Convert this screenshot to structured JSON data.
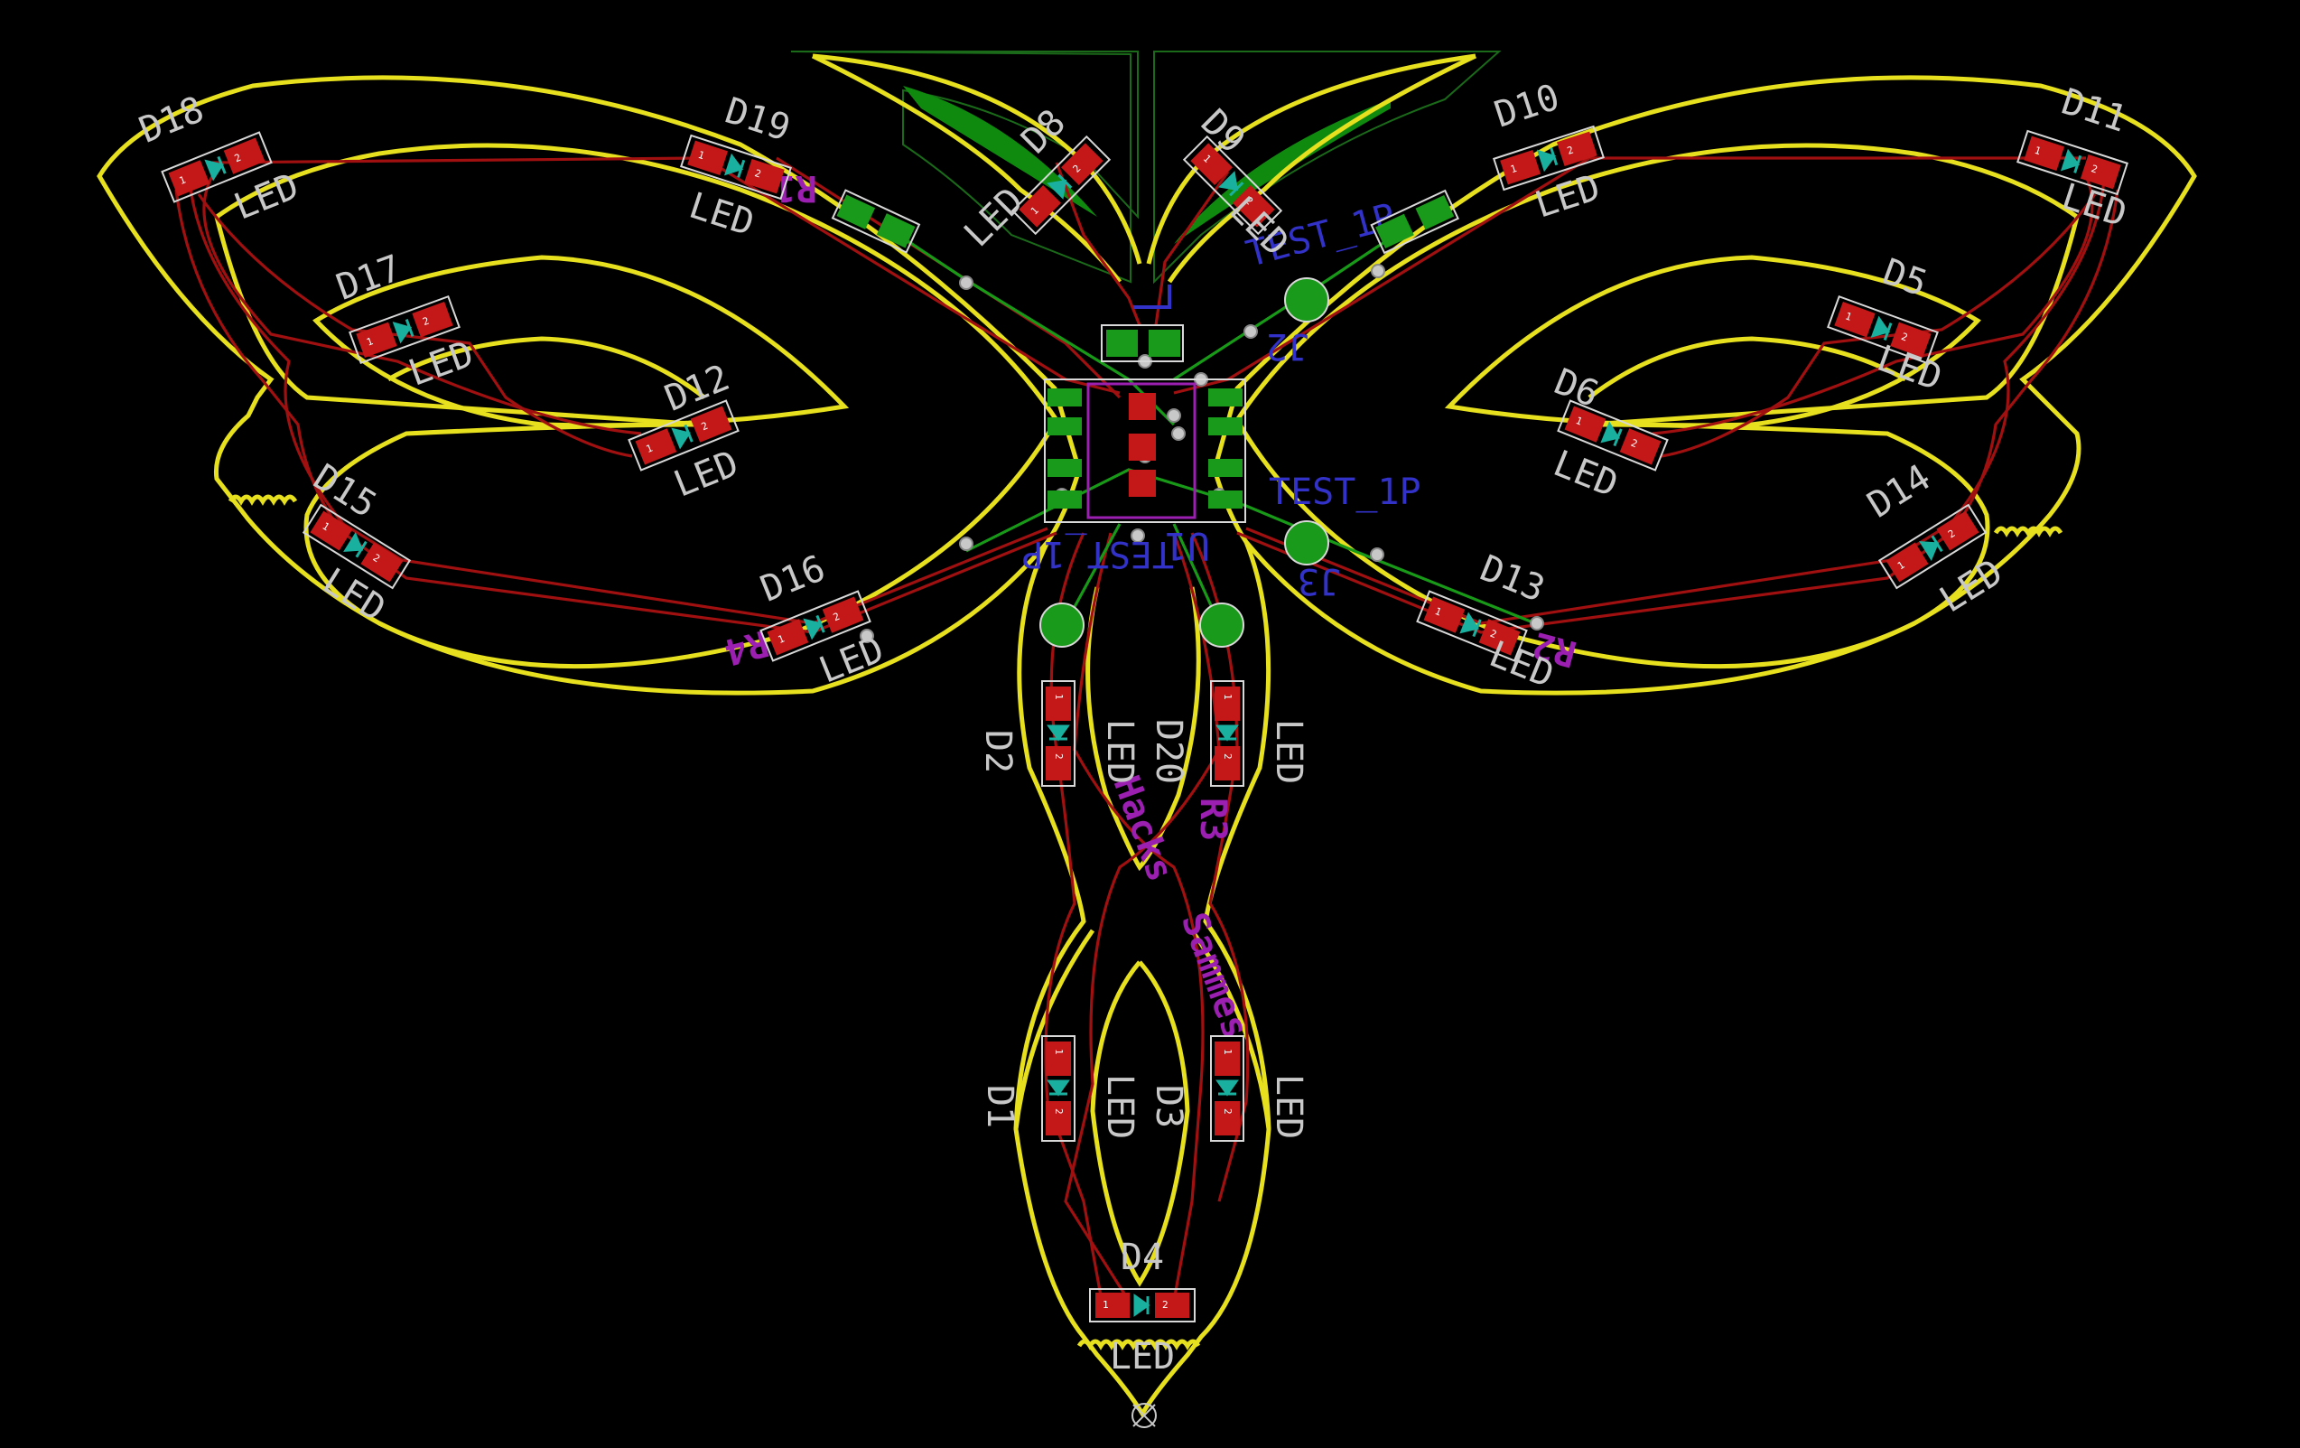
{
  "window": {
    "title": ""
  },
  "board": {
    "background": "#000000",
    "colors": {
      "edge_cuts": "#e6e01e",
      "front_copper": "#a01010",
      "back_copper": "#189a18",
      "front_silk": "#c8c8c8",
      "back_silk": "#3232c8",
      "logo": "#9b1fb0"
    },
    "leds": [
      {
        "ref": "D18",
        "value": "LED"
      },
      {
        "ref": "D19",
        "value": "LED"
      },
      {
        "ref": "D8",
        "value": "LED"
      },
      {
        "ref": "D9",
        "value": "LED"
      },
      {
        "ref": "D10",
        "value": "LED"
      },
      {
        "ref": "D11",
        "value": "LED"
      },
      {
        "ref": "D17",
        "value": "LED"
      },
      {
        "ref": "D5",
        "value": "LED"
      },
      {
        "ref": "D12",
        "value": "LED"
      },
      {
        "ref": "D6",
        "value": "LED"
      },
      {
        "ref": "D15",
        "value": "LED"
      },
      {
        "ref": "D14",
        "value": "LED"
      },
      {
        "ref": "D16",
        "value": "LED"
      },
      {
        "ref": "D13",
        "value": "LED"
      },
      {
        "ref": "D2",
        "value": "LED"
      },
      {
        "ref": "D20",
        "value": "LED"
      },
      {
        "ref": "D1",
        "value": "LED"
      },
      {
        "ref": "D3",
        "value": "LED"
      },
      {
        "ref": "D4",
        "value": "LED"
      }
    ],
    "back_labels": {
      "r1": "R1",
      "r2": "R2",
      "r3": "R3",
      "r4": "R4",
      "j2": "J2",
      "j3": "J3",
      "u1": "U1",
      "test_left": "TEST_1P",
      "test_right": "TEST_1P",
      "test_center": "TEST_1P"
    },
    "logo_words": [
      "Hacks",
      "Sammes"
    ],
    "pad_numbers": [
      "1",
      "2"
    ]
  }
}
